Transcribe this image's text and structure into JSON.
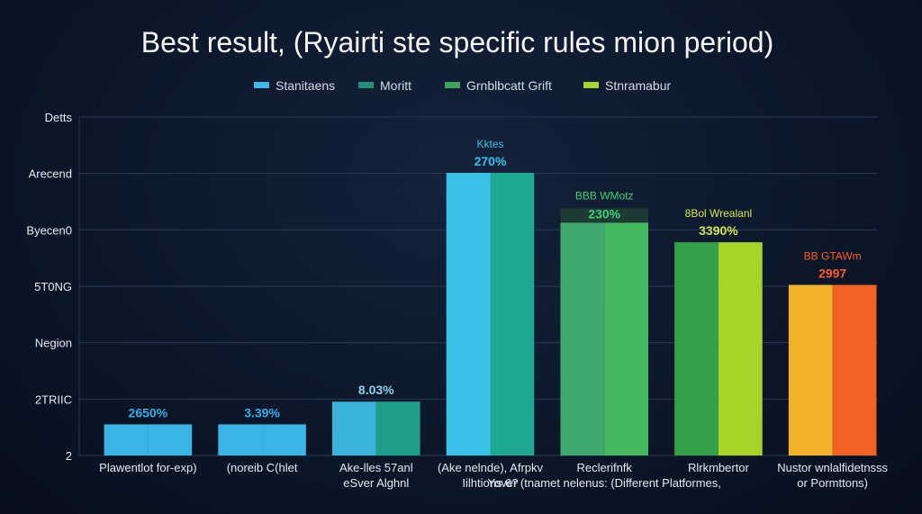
{
  "chart_data": {
    "type": "bar",
    "title": "Best result, (Ryairti ste specific rules mion period)",
    "legend": {
      "placement": "top-center",
      "entries": [
        {
          "name": "Stanitaens",
          "color": "#3fb6e6"
        },
        {
          "name": "Moritt",
          "color": "#1f8f7a"
        },
        {
          "name": "Grnblbcatt Grift",
          "color": "#3da35a"
        },
        {
          "name": "Stnramabur",
          "color": "#a6d62c"
        }
      ]
    },
    "y_tick_labels": [
      "Detts",
      "Arecend",
      "Byecen0",
      "5T0NG",
      "Negion",
      "2TRIIC",
      "2"
    ],
    "grid": true,
    "ylim": [
      0,
      100
    ],
    "categories": [
      "Plawentlot for-exp)",
      "(noreib C(hlet",
      "Ake-lles 57anl eSver Alghnl",
      "(Ake nelnde), Afrpkv Iilhtions 6?",
      "Reclerifnfk Yover (tnamet nelenus: (Different Platformes,",
      "Rlrkmbertor",
      "Nustor wnlalfidetnsss or Pormttons)"
    ],
    "x_label_lines": [
      [
        "Plawentlot for-exp)"
      ],
      [
        "(noreib C(hlet"
      ],
      [
        "Ake-lles 57anl",
        "eSver Alghnl"
      ],
      [
        "(Ake nelnde), Afrpkv",
        "Iilhtions 6?"
      ],
      [
        "Reclerifnfk",
        "Yover (tnamet nelenus: (Different Platformes,"
      ],
      [
        "Rlrkmbertor",
        ""
      ],
      [
        "Nustor wnlalfidetnsss",
        "or Pormttons)"
      ]
    ],
    "values": [
      9.2,
      9.2,
      15.9,
      83.5,
      68.8,
      63.0,
      50.4
    ],
    "data_labels": [
      "2650%",
      "3.39%",
      "8.03%",
      "270%",
      "230%",
      "3390%",
      "2997"
    ],
    "data_sublabels": [
      "",
      "",
      "",
      "Kktes",
      "BBB WMotz",
      "8Bol Wrealanl",
      "BB GTAWm"
    ],
    "colors": [
      [
        "#3ab4e4",
        "#3ab4e4"
      ],
      [
        "#3ab4e4",
        "#3ab4e4"
      ],
      [
        "#3bb2d9",
        "#1f9e8a"
      ],
      [
        "#3bc1e8",
        "#1fa892"
      ],
      [
        "#3fa86e",
        "#45b860"
      ],
      [
        "#35a04a",
        "#a8d42a"
      ],
      [
        "#f2b32c",
        "#f26225"
      ]
    ],
    "label_colors": [
      "#2fb0e6",
      "#2fb0e6",
      "#8fd0e8",
      "#39c0ea",
      "#3ecf7a",
      "#d6e84a",
      "#ff5a28"
    ]
  }
}
